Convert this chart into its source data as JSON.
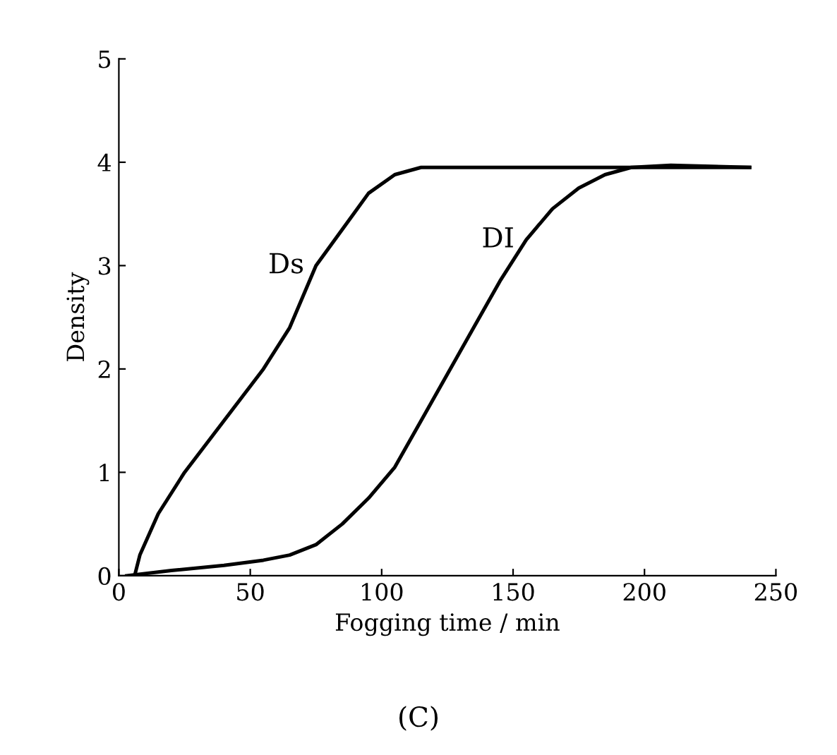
{
  "chart_data": {
    "type": "line",
    "xlabel": "Fogging time / min",
    "ylabel": "Density",
    "xlim": [
      0,
      250
    ],
    "ylim": [
      0,
      5
    ],
    "xticks": [
      0,
      50,
      100,
      150,
      200,
      250
    ],
    "yticks": [
      0,
      1,
      2,
      3,
      4,
      5
    ],
    "grid": false,
    "marker": "none",
    "line_style": "solid",
    "series": [
      {
        "name": "Ds",
        "color": "#000000",
        "x": [
          6,
          8,
          15,
          25,
          40,
          55,
          65,
          75,
          85,
          95,
          105,
          115,
          125,
          240
        ],
        "values": [
          0,
          0.2,
          0.6,
          1.0,
          1.5,
          2.0,
          2.4,
          3.0,
          3.35,
          3.7,
          3.88,
          3.95,
          3.95,
          3.95
        ]
      },
      {
        "name": "DI",
        "color": "#000000",
        "x": [
          3,
          20,
          40,
          55,
          65,
          75,
          85,
          95,
          105,
          115,
          125,
          135,
          145,
          155,
          165,
          175,
          185,
          195,
          210,
          240
        ],
        "values": [
          0,
          0.05,
          0.1,
          0.15,
          0.2,
          0.3,
          0.5,
          0.75,
          1.05,
          1.5,
          1.95,
          2.4,
          2.85,
          3.25,
          3.55,
          3.75,
          3.88,
          3.95,
          3.97,
          3.95
        ]
      }
    ],
    "annotations": [
      "(C)"
    ]
  }
}
